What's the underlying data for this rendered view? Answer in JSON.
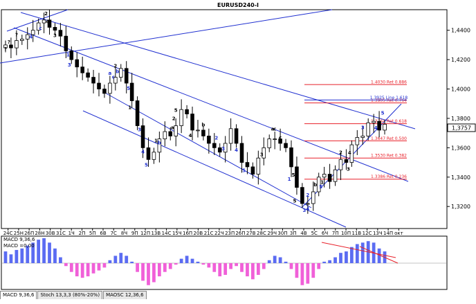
{
  "title": "EURUSD240-I",
  "colors": {
    "candle": "#000000",
    "trend_line": "#1f2fd0",
    "ret_line": "#e8202a",
    "wave_label_black": "#000000",
    "wave_label_blue": "#1f2fd0",
    "macd_pos": "#5b6cf2",
    "macd_neg": "#f060d8",
    "signal_line": "#e8202a"
  },
  "chart_data": [
    {
      "type": "candlestick",
      "title": "EURUSD240-I",
      "ylim": [
        1.305,
        1.454
      ],
      "y_ticks": [
        "1,4400",
        "1,4200",
        "1,4000",
        "1,3800",
        "1,3600",
        "1,3400",
        "1,3200"
      ],
      "y_tick_values": [
        1.44,
        1.42,
        1.4,
        1.38,
        1.36,
        1.34,
        1.32
      ],
      "x_labels": [
        "24С",
        "25Н",
        "26П",
        "28Н",
        "30В",
        "31С",
        "1Ч",
        "2П",
        "5П",
        "6В",
        "7С",
        "8Ч",
        "9П",
        "12П",
        "13В",
        "14С",
        "15Ч",
        "16П",
        "20В",
        "21С",
        "22Ч",
        "23П",
        "26П",
        "27В",
        "28С",
        "29Ч",
        "30П",
        "3П",
        "4В",
        "5С",
        "6Ч",
        "7П",
        "10П",
        "11В",
        "12С",
        "13Ч",
        "14П",
        "окт"
      ],
      "current_price": "1,3757",
      "current_price_value": 1.3757,
      "closes": [
        1.43,
        1.428,
        1.433,
        1.434,
        1.437,
        1.44,
        1.445,
        1.447,
        1.442,
        1.44,
        1.436,
        1.426,
        1.42,
        1.415,
        1.411,
        1.408,
        1.404,
        1.4,
        1.397,
        1.404,
        1.408,
        1.414,
        1.404,
        1.392,
        1.375,
        1.36,
        1.352,
        1.357,
        1.366,
        1.371,
        1.368,
        1.375,
        1.386,
        1.383,
        1.372,
        1.372,
        1.368,
        1.363,
        1.36,
        1.357,
        1.363,
        1.373,
        1.363,
        1.35,
        1.347,
        1.342,
        1.353,
        1.36,
        1.366,
        1.366,
        1.363,
        1.36,
        1.347,
        1.333,
        1.322,
        1.322,
        1.33,
        1.34,
        1.342,
        1.337,
        1.345,
        1.352,
        1.35,
        1.362,
        1.367,
        1.368,
        1.377,
        1.378,
        1.372,
        1.376
      ],
      "wave_labels": [
        {
          "text": "?",
          "color": "black"
        },
        {
          "text": "?",
          "color": "black"
        },
        {
          "text": "2",
          "color": "black"
        },
        {
          "text": "4",
          "color": "black"
        },
        {
          "text": "3",
          "color": "black"
        },
        {
          "text": "c",
          "color": "blue"
        },
        {
          "text": "4",
          "color": "blue"
        },
        {
          "text": "?",
          "color": "black"
        },
        {
          "text": "1",
          "color": "blue"
        },
        {
          "text": "3",
          "color": "blue"
        },
        {
          "text": "a",
          "color": "blue"
        },
        {
          "text": "b",
          "color": "blue"
        },
        {
          "text": "c",
          "color": "blue"
        },
        {
          "text": "2",
          "color": "black"
        },
        {
          "text": "5",
          "color": "blue"
        },
        {
          "text": "1",
          "color": "black"
        },
        {
          "text": "4",
          "color": "blue"
        },
        {
          "text": "3",
          "color": "blue"
        },
        {
          "text": "5",
          "color": "blue"
        },
        {
          "text": "b",
          "color": "blue"
        },
        {
          "text": "1",
          "color": "black"
        },
        {
          "text": "2",
          "color": "black"
        },
        {
          "text": "5",
          "color": "black"
        },
        {
          "text": "a",
          "color": "black"
        },
        {
          "text": "4",
          "color": "black"
        },
        {
          "text": "b",
          "color": "black"
        },
        {
          "text": "2",
          "color": "blue"
        },
        {
          "text": "3",
          "color": "blue"
        },
        {
          "text": "4",
          "color": "blue"
        },
        {
          "text": "5",
          "color": "blue"
        },
        {
          "text": "3",
          "color": "black"
        },
        {
          "text": "c",
          "color": "black"
        },
        {
          "text": "5",
          "color": "black"
        },
        {
          "text": "1",
          "color": "blue"
        },
        {
          "text": "2",
          "color": "blue"
        },
        {
          "text": "b",
          "color": "black"
        },
        {
          "text": "a",
          "color": "black"
        },
        {
          "text": "c",
          "color": "black"
        },
        {
          "text": "3",
          "color": "blue"
        },
        {
          "text": "5",
          "color": "black"
        },
        {
          "text": "4",
          "color": "blue"
        },
        {
          "text": "5",
          "color": "blue"
        },
        {
          "text": "1",
          "color": "black"
        },
        {
          "text": "2",
          "color": "black"
        },
        {
          "text": "3",
          "color": "black"
        },
        {
          "text": "4",
          "color": "black"
        },
        {
          "text": "3",
          "color": "blue"
        },
        {
          "text": "4",
          "color": "blue"
        },
        {
          "text": "5",
          "color": "blue"
        }
      ],
      "retracements": [
        {
          "label": "1.4030 Ret 0.886",
          "value": 1.403
        },
        {
          "label": "1.3905 Ret 0.764",
          "value": 1.3905
        },
        {
          "label": "1.3925 Line 1.618",
          "value": 1.3925
        },
        {
          "label": "1.3764 Ret 0.618",
          "value": 1.3764
        },
        {
          "label": "1.3647 Ret 0.500",
          "value": 1.3647
        },
        {
          "label": "1.3530 Ret 0.382",
          "value": 1.353
        },
        {
          "label": "1.3386 Ret 0.236",
          "value": 1.3386
        }
      ]
    },
    {
      "type": "bar",
      "title": "MACD 9,36,6",
      "value_label": "MACD =0,00",
      "values": [
        0.4,
        0.3,
        0.45,
        0.5,
        0.6,
        0.7,
        0.8,
        0.85,
        0.7,
        0.5,
        0.2,
        -0.1,
        -0.3,
        -0.45,
        -0.5,
        -0.45,
        -0.35,
        -0.25,
        -0.15,
        0.1,
        0.25,
        0.35,
        0.25,
        0.05,
        -0.3,
        -0.6,
        -0.75,
        -0.65,
        -0.45,
        -0.3,
        -0.2,
        -0.05,
        0.15,
        0.25,
        0.15,
        0.05,
        -0.05,
        -0.15,
        -0.3,
        -0.45,
        -0.4,
        -0.2,
        -0.1,
        -0.3,
        -0.45,
        -0.55,
        -0.4,
        -0.2,
        0.1,
        0.25,
        0.2,
        0.05,
        -0.2,
        -0.5,
        -0.75,
        -0.7,
        -0.5,
        -0.2,
        0.05,
        0.1,
        0.2,
        0.35,
        0.4,
        0.55,
        0.65,
        0.7,
        0.75,
        0.7,
        0.5,
        0.4
      ],
      "ylim": [
        -0.85,
        0.85
      ]
    }
  ],
  "tabs": [
    "MACD 9,36,6",
    "Stoch 13,3,3 (80%-20%)",
    "MAOSC 12,36,6"
  ]
}
